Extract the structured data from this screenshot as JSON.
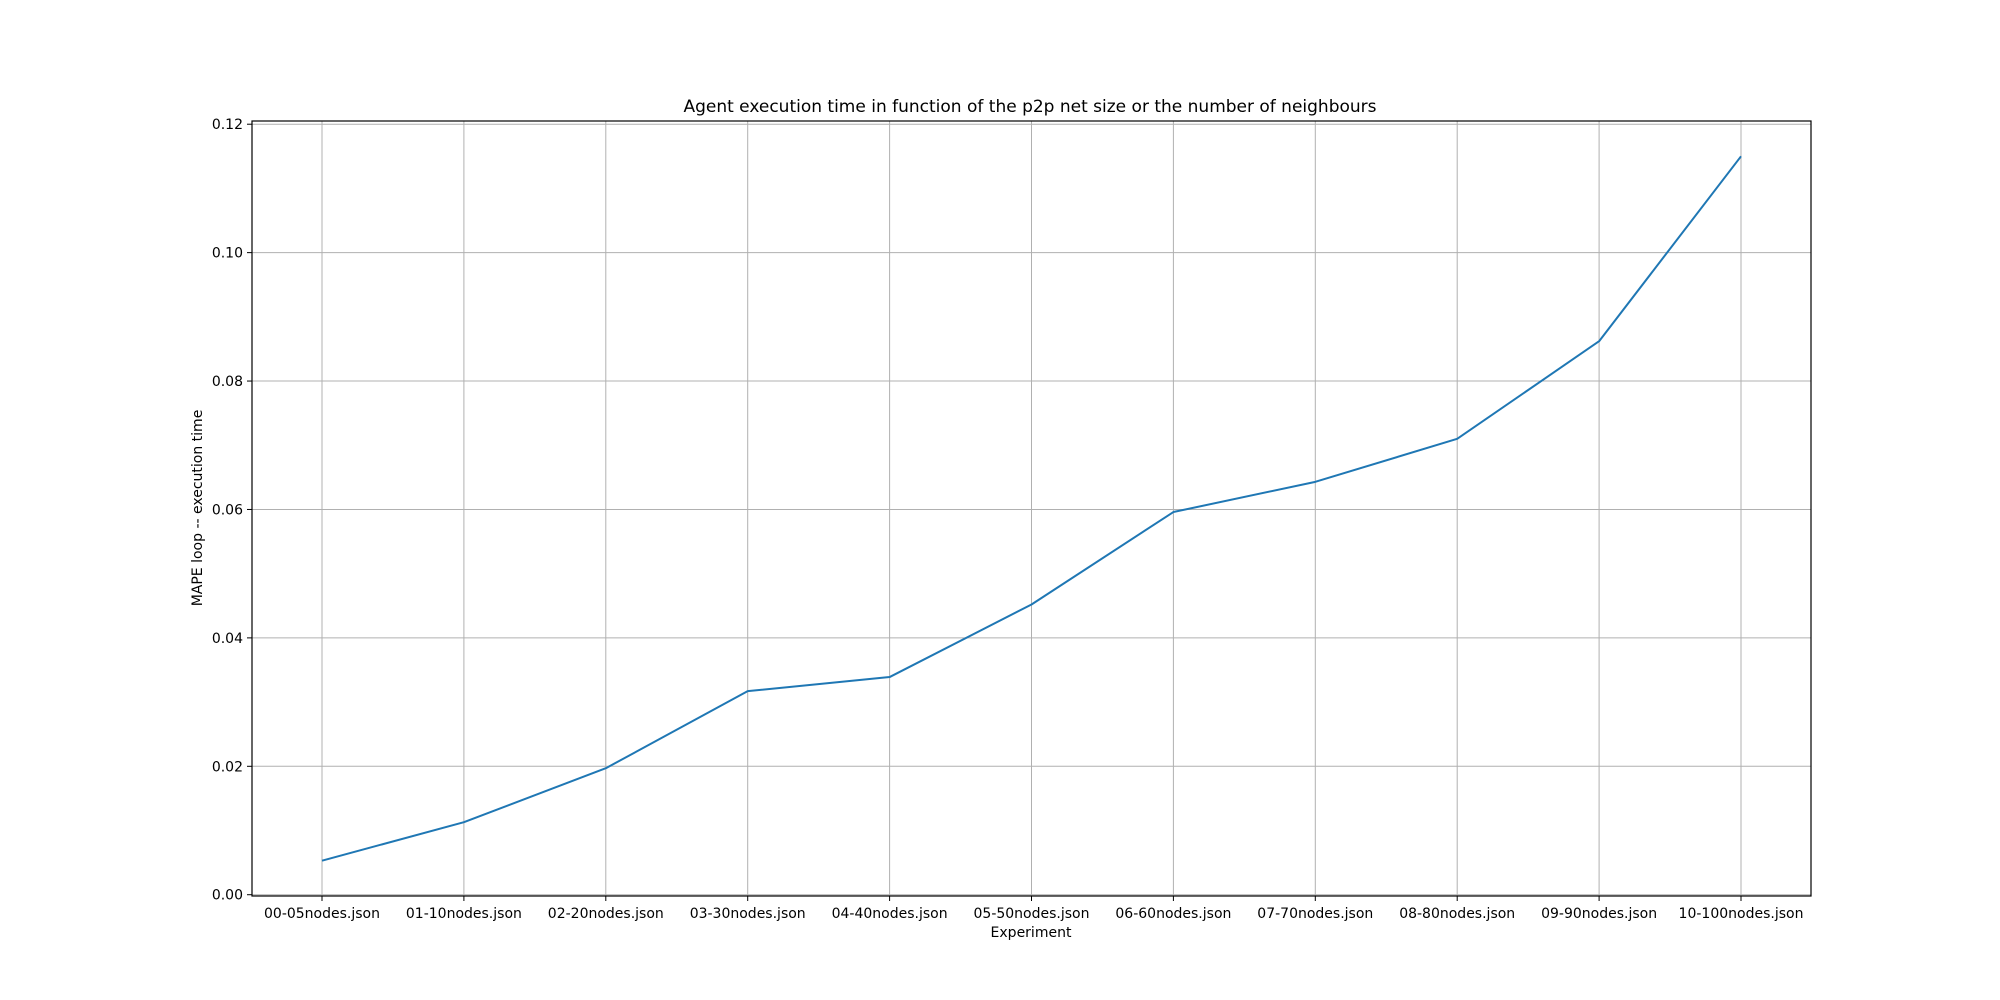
{
  "chart_data": {
    "type": "line",
    "title": "Agent execution time in function of the p2p net size or the number of neighbours",
    "xlabel": "Experiment",
    "ylabel": "MAPE loop -- execution time",
    "categories": [
      "00-05nodes.json",
      "01-10nodes.json",
      "02-20nodes.json",
      "03-30nodes.json",
      "04-40nodes.json",
      "05-50nodes.json",
      "06-60nodes.json",
      "07-70nodes.json",
      "08-80nodes.json",
      "09-90nodes.json",
      "10-100nodes.json"
    ],
    "series": [
      {
        "values": [
          0.0053,
          0.0113,
          0.0197,
          0.0317,
          0.0339,
          0.0452,
          0.0596,
          0.0643,
          0.071,
          0.0862,
          0.115
        ],
        "color": "#1f77b4"
      }
    ],
    "yticks": [
      "0.00",
      "0.02",
      "0.04",
      "0.06",
      "0.08",
      "0.10",
      "0.12"
    ],
    "ytick_values": [
      0,
      0.02,
      0.04,
      0.06,
      0.08,
      0.1,
      0.12
    ],
    "ylim": [
      -0.0002,
      0.1205
    ],
    "grid": true,
    "grid_color": "#b0b0b0"
  }
}
